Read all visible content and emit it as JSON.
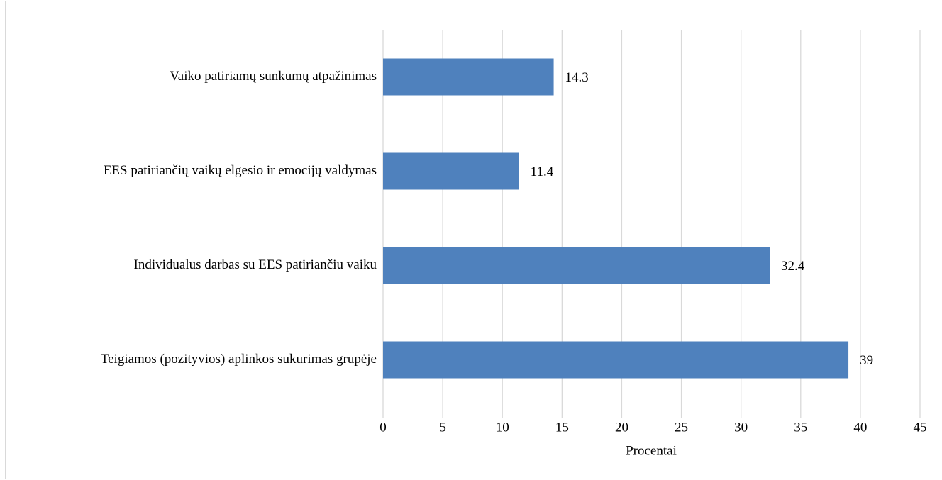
{
  "chart_data": {
    "type": "hbar",
    "categories": [
      "Vaiko patiriamų sunkumų atpažinimas",
      "EES patiriančių vaikų elgesio ir emocijų valdymas",
      "Individualus darbas su EES patiriančiu vaiku",
      "Teigiamos (pozityvios) aplinkos sukūrimas grupėje"
    ],
    "values": [
      14.3,
      11.4,
      32.4,
      39
    ],
    "color": "#4f81bd",
    "x_label": "Procentai",
    "xlim": [
      0,
      45
    ],
    "xticks": [
      0,
      5,
      10,
      15,
      20,
      25,
      30,
      35,
      40,
      45
    ],
    "grid": true
  }
}
